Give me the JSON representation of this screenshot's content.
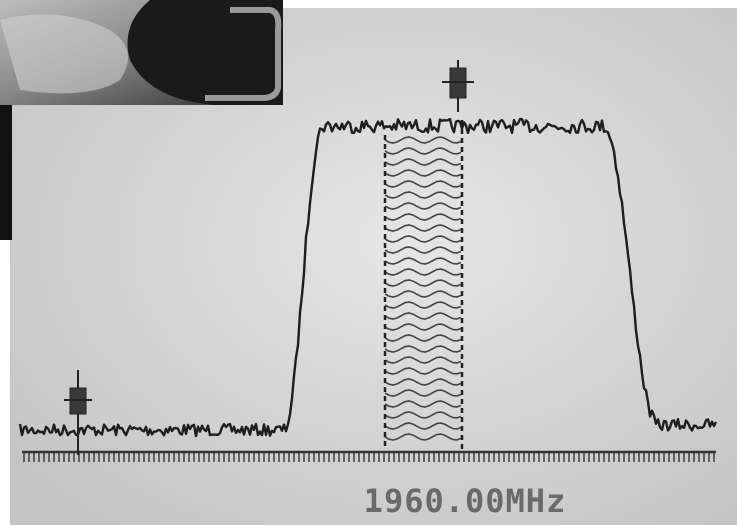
{
  "readout": "1960.00MHz"
}
